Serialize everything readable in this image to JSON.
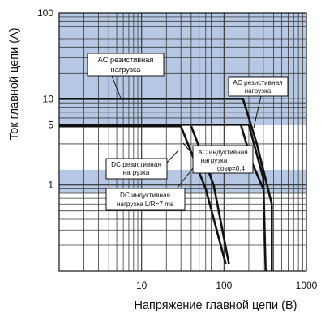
{
  "chart_data": {
    "type": "line",
    "title": "",
    "xlabel": "Напряжение главной цепи (В)",
    "ylabel": "Ток главной цепи (А)",
    "x_scale": "log",
    "y_scale": "log",
    "xlim": [
      1,
      1000
    ],
    "ylim": [
      0.1,
      100
    ],
    "x_ticks": [
      {
        "value": 10,
        "label": "10"
      },
      {
        "value": 100,
        "label": "100"
      },
      {
        "value": 1000,
        "label": "1000"
      }
    ],
    "y_ticks": [
      {
        "value": 100,
        "label": "100"
      },
      {
        "value": 10,
        "label": "10"
      },
      {
        "value": 5,
        "label": "5"
      },
      {
        "value": 1,
        "label": "1"
      }
    ],
    "grid": true,
    "shaded_bands": [
      [
        0.8,
        1.5
      ],
      [
        5,
        100
      ]
    ],
    "series": [
      {
        "points": [
          [
            1,
            10
          ],
          [
            170,
            10
          ],
          [
            250,
            3
          ],
          [
            380,
            0.6
          ],
          [
            380,
            0.1
          ]
        ]
      },
      {
        "points": [
          [
            1,
            5
          ],
          [
            200,
            5
          ],
          [
            300,
            1.2
          ],
          [
            320,
            0.1
          ]
        ]
      },
      {
        "points": [
          [
            1,
            4.8
          ],
          [
            30,
            4.8
          ],
          [
            60,
            0.9
          ],
          [
            105,
            0.12
          ]
        ]
      },
      {
        "points": [
          [
            40,
            4.8
          ],
          [
            75,
            1.0
          ],
          [
            115,
            0.12
          ]
        ]
      },
      {
        "points": [
          [
            160,
            5
          ],
          [
            220,
            1.8
          ],
          [
            300,
            0.9
          ]
        ]
      }
    ],
    "annotations": [
      {
        "lines": [
          "AC резистивная",
          "нагрузка"
        ],
        "target": [
          20,
          10
        ]
      },
      {
        "lines": [
          "AC резистивная",
          "нагрузка"
        ],
        "target": [
          260,
          5
        ]
      },
      {
        "lines": [
          "AC индуктивная",
          "нагрузка"
        ],
        "target": [
          105,
          3.6
        ]
      },
      {
        "lines": [
          "cosφ=0,4"
        ],
        "target": [
          150,
          1.6
        ]
      },
      {
        "lines": [
          "DC резистивная",
          "нагрузка"
        ],
        "target": [
          50,
          2.3
        ]
      },
      {
        "lines": [
          "DC индуктивная",
          "нагрузка L/R=7 ms"
        ],
        "target": [
          60,
          1.7
        ]
      }
    ]
  }
}
